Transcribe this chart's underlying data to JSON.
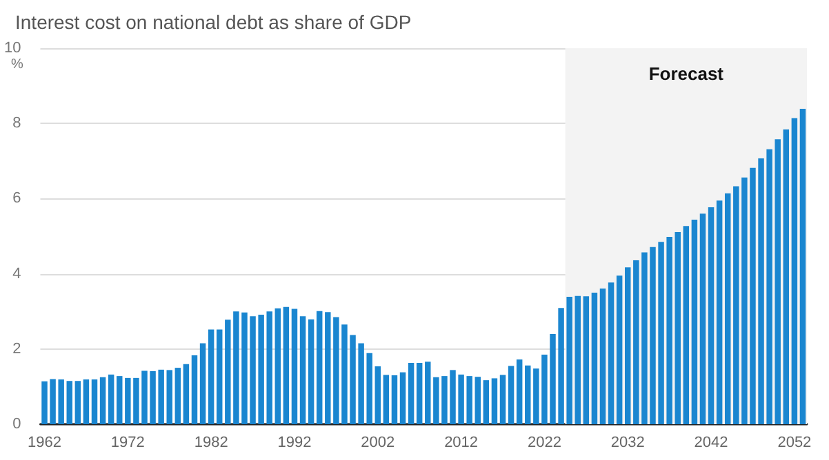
{
  "chart_data": {
    "type": "bar",
    "title": "Interest cost on national debt as share of GDP",
    "ylabel": "%",
    "x": [
      1962,
      1963,
      1964,
      1965,
      1966,
      1967,
      1968,
      1969,
      1970,
      1971,
      1972,
      1973,
      1974,
      1975,
      1976,
      1977,
      1978,
      1979,
      1980,
      1981,
      1982,
      1983,
      1984,
      1985,
      1986,
      1987,
      1988,
      1989,
      1990,
      1991,
      1992,
      1993,
      1994,
      1995,
      1996,
      1997,
      1998,
      1999,
      2000,
      2001,
      2002,
      2003,
      2004,
      2005,
      2006,
      2007,
      2008,
      2009,
      2010,
      2011,
      2012,
      2013,
      2014,
      2015,
      2016,
      2017,
      2018,
      2019,
      2020,
      2021,
      2022,
      2023,
      2024,
      2025,
      2026,
      2027,
      2028,
      2029,
      2030,
      2031,
      2032,
      2033,
      2034,
      2035,
      2036,
      2037,
      2038,
      2039,
      2040,
      2041,
      2042,
      2043,
      2044,
      2045,
      2046,
      2047,
      2048,
      2049,
      2050,
      2051,
      2052,
      2053
    ],
    "values": [
      1.14,
      1.2,
      1.19,
      1.15,
      1.15,
      1.19,
      1.19,
      1.25,
      1.32,
      1.28,
      1.23,
      1.23,
      1.42,
      1.41,
      1.45,
      1.44,
      1.5,
      1.6,
      1.83,
      2.15,
      2.52,
      2.52,
      2.78,
      3.0,
      2.97,
      2.87,
      2.91,
      3.0,
      3.08,
      3.12,
      3.07,
      2.87,
      2.79,
      3.01,
      2.98,
      2.85,
      2.65,
      2.37,
      2.15,
      1.89,
      1.54,
      1.31,
      1.3,
      1.38,
      1.63,
      1.63,
      1.66,
      1.25,
      1.28,
      1.44,
      1.32,
      1.28,
      1.26,
      1.17,
      1.22,
      1.31,
      1.55,
      1.72,
      1.56,
      1.48,
      1.85,
      2.4,
      3.09,
      3.39,
      3.41,
      3.4,
      3.5,
      3.61,
      3.77,
      3.95,
      4.17,
      4.36,
      4.57,
      4.71,
      4.85,
      4.98,
      5.11,
      5.27,
      5.44,
      5.6,
      5.77,
      5.95,
      6.14,
      6.33,
      6.56,
      6.82,
      7.07,
      7.31,
      7.58,
      7.84,
      8.14,
      8.39
    ],
    "color": "#1a86d0",
    "xlim": [
      1961.5,
      2053.5
    ],
    "xticks": [
      1962,
      1972,
      1982,
      1992,
      2002,
      2012,
      2022,
      2032,
      2042,
      2052
    ],
    "ylim": [
      0,
      10
    ],
    "yticks": [
      0,
      2,
      4,
      6,
      8,
      10
    ],
    "bands": [
      {
        "axis": "x",
        "from": 2024.5,
        "to": 2053.5,
        "label": "Forecast",
        "color": "#f3f3f3"
      }
    ],
    "grid": "y"
  }
}
